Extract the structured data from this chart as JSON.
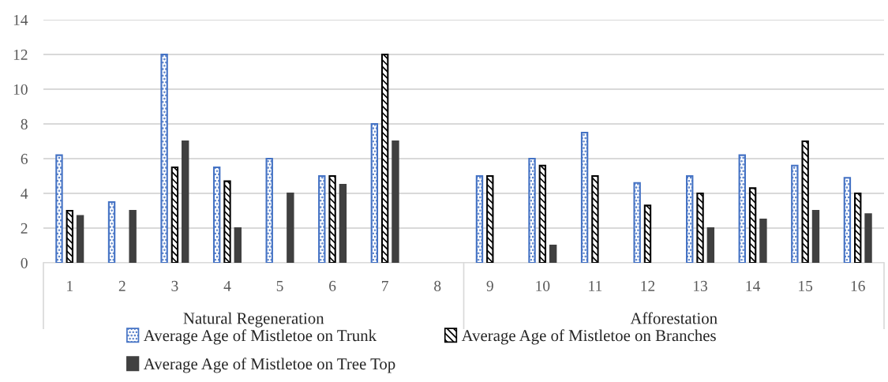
{
  "chart_data": {
    "type": "bar",
    "categories": [
      "1",
      "2",
      "3",
      "4",
      "5",
      "6",
      "7",
      "8",
      "9",
      "10",
      "11",
      "12",
      "13",
      "14",
      "15",
      "16"
    ],
    "series": [
      {
        "name": "Average Age of Mistletoe on Trunk",
        "color": "#4472c4",
        "values": [
          6.2,
          3.5,
          12,
          5.5,
          6,
          5,
          8,
          null,
          5,
          6,
          7.5,
          4.6,
          5,
          6.2,
          5.6,
          4.9
        ]
      },
      {
        "name": "Average Age of Mistletoe on Branches",
        "color": "#000000",
        "values": [
          3,
          null,
          5.5,
          4.7,
          null,
          5,
          12,
          null,
          5,
          5.6,
          5,
          3.3,
          4,
          4.3,
          7,
          4
        ]
      },
      {
        "name": "Average Age of Mistletoe on Tree Top",
        "color": "#404040",
        "values": [
          2.7,
          3,
          7,
          2,
          4,
          4.5,
          7,
          null,
          null,
          1,
          null,
          null,
          2,
          2.5,
          3,
          2.8
        ]
      }
    ],
    "annotations": [
      "Natural Regeneration",
      "Afforestation"
    ],
    "ylim": [
      0,
      14
    ],
    "yticks": [
      0,
      2,
      4,
      6,
      8,
      10,
      12,
      14
    ],
    "grid": "y",
    "legend": "bottom"
  }
}
